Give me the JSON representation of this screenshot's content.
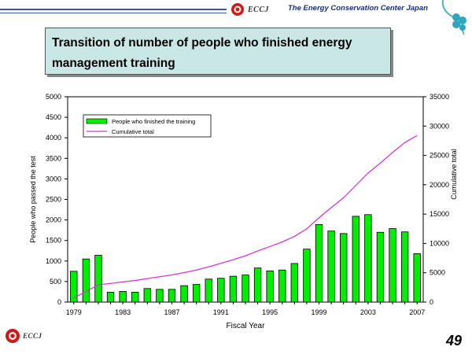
{
  "header": {
    "logo_text": "ECCJ",
    "organization": "The Energy Conservation Center Japan"
  },
  "slide": {
    "title": "Transition of number of people who finished energy management training",
    "page_number": "49"
  },
  "footer": {
    "logo_text": "ECCJ"
  },
  "colors": {
    "bar": "#00ee00",
    "line": "#dd33dd",
    "header_line": "#3355aa",
    "title_bg": "#c9e7e6"
  },
  "chart_data": {
    "type": "bar",
    "x": [
      1979,
      1980,
      1981,
      1982,
      1983,
      1984,
      1985,
      1986,
      1987,
      1988,
      1989,
      1990,
      1991,
      1992,
      1993,
      1994,
      1995,
      1996,
      1997,
      1998,
      1999,
      2000,
      2001,
      2002,
      2003,
      2004,
      2005,
      2006,
      2007
    ],
    "x_tick_labels": [
      "1979",
      "1983",
      "1987",
      "1991",
      "1995",
      "1999",
      "2003",
      "2007"
    ],
    "series": [
      {
        "name": "People who finished the training",
        "type": "bar",
        "axis": "left",
        "values": [
          750,
          1050,
          1140,
          240,
          260,
          240,
          330,
          310,
          310,
          400,
          430,
          560,
          580,
          630,
          660,
          830,
          760,
          780,
          940,
          1290,
          1890,
          1730,
          1670,
          2090,
          2130,
          1700,
          1790,
          1710,
          1180
        ]
      },
      {
        "name": "Cumulative total",
        "type": "line",
        "axis": "right",
        "values": [
          750,
          1800,
          2940,
          3180,
          3440,
          3680,
          4010,
          4320,
          4630,
          5030,
          5460,
          6020,
          6600,
          7230,
          7890,
          8720,
          9480,
          10260,
          11200,
          12490,
          14380,
          16110,
          17780,
          19870,
          22000,
          23700,
          25490,
          27200,
          28380
        ]
      }
    ],
    "xlabel": "Fiscal Year",
    "ylabel_left": "People who passed the test",
    "ylabel_right": "Cumulative total",
    "ylim_left": [
      0,
      5000
    ],
    "ylim_right": [
      0,
      35000
    ],
    "yticks_left": [
      "0",
      "500",
      "1000",
      "1500",
      "2000",
      "2500",
      "3000",
      "3500",
      "4000",
      "4500",
      "5000"
    ],
    "yticks_right": [
      "0",
      "5000",
      "10000",
      "15000",
      "20000",
      "25000",
      "30000",
      "35000"
    ],
    "legend_position": "top-left",
    "grid": false
  }
}
